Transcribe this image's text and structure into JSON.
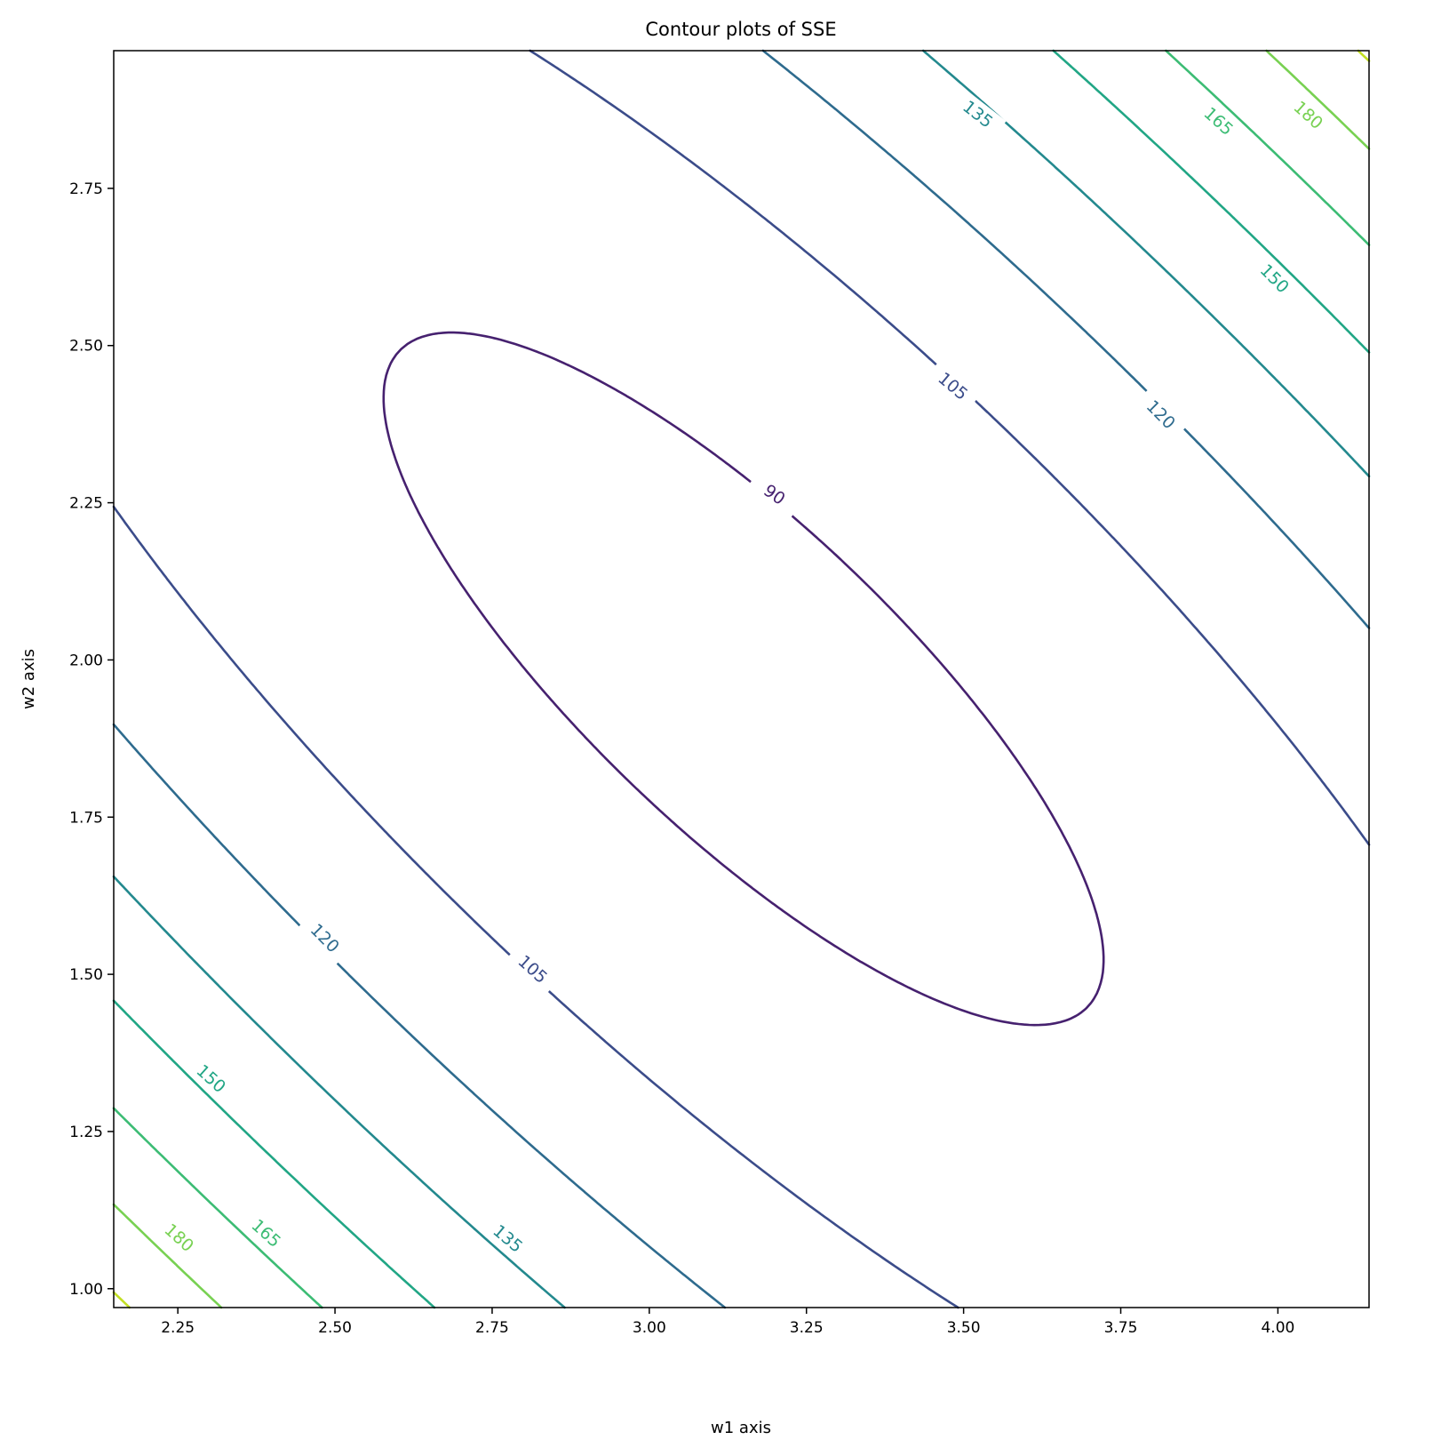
{
  "chart_data": {
    "type": "contour",
    "title": "Contour plots of SSE",
    "xlabel": "w1 axis",
    "ylabel": "w2 axis",
    "xlim": [
      2.148,
      4.145
    ],
    "ylim": [
      0.97,
      2.969
    ],
    "xticks": [
      "2.25",
      "2.50",
      "2.75",
      "3.00",
      "3.25",
      "3.50",
      "3.75",
      "4.00"
    ],
    "yticks": [
      "1.00",
      "1.25",
      "1.50",
      "1.75",
      "2.00",
      "2.25",
      "2.50",
      "2.75"
    ],
    "grid": false,
    "surface": {
      "form": "quadratic",
      "center": [
        3.15,
        1.97
      ],
      "minimum": 86.7,
      "coef_w1w1": 29.4,
      "coef_w1w2": 24.8,
      "coef_w2w2": 31.8
    },
    "levels": [
      90,
      105,
      120,
      135,
      150,
      165,
      180,
      195
    ],
    "level_colors": [
      "#46216f",
      "#3b4c8a",
      "#2e6b8e",
      "#23898e",
      "#21a685",
      "#3cbc74",
      "#78d152",
      "#c2df23"
    ],
    "contour_labels": [
      "90",
      "105",
      "105",
      "120",
      "120",
      "135",
      "135",
      "150",
      "150",
      "165",
      "165",
      "180",
      "180"
    ]
  }
}
